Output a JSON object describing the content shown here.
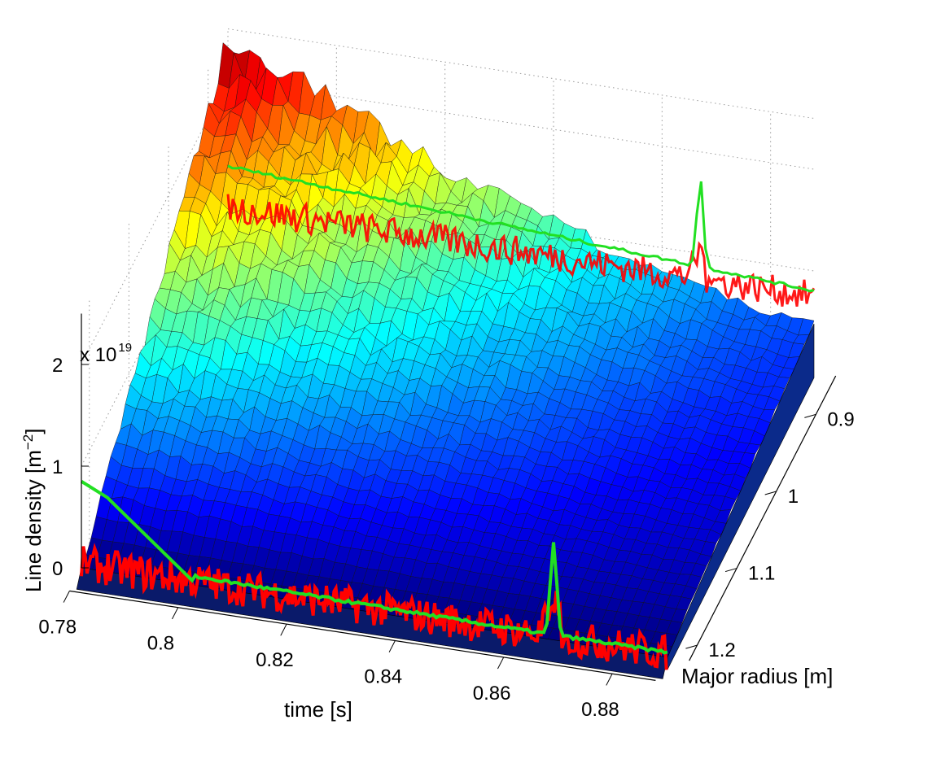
{
  "chart_data": {
    "type": "surface3d",
    "title": "",
    "xlabel": "time [s]",
    "ylabel": "Major radius [m]",
    "zlabel_main": "Line density [m",
    "zlabel_sup": "−2",
    "zlabel_end": "]",
    "zscale_text": "x 10",
    "zscale_exp": "19",
    "x_ticks": [
      "0.78",
      "0.8",
      "0.82",
      "0.84",
      "0.86",
      "0.88"
    ],
    "x_tick_values": [
      0.78,
      0.8,
      0.82,
      0.84,
      0.86,
      0.88
    ],
    "y_ticks": [
      "0.9",
      "1",
      "1.1",
      "1.2"
    ],
    "y_tick_values": [
      0.9,
      1.0,
      1.1,
      1.2
    ],
    "z_ticks": [
      "0",
      "1",
      "2"
    ],
    "z_tick_values": [
      0,
      1,
      2
    ],
    "xlim": [
      0.777,
      0.893
    ],
    "ylim": [
      0.85,
      1.22
    ],
    "zlim": [
      0,
      2.5
    ],
    "grid": true,
    "colormap": "jet",
    "surface": {
      "time_start": 0.78,
      "time_end": 0.888,
      "peak_value": 2.35,
      "edge_value_at_1_2m": 0.03,
      "value_at_0_88s_0_9m": 0.9
    },
    "overlays": [
      {
        "name": "",
        "color": "#ff0000",
        "description_value": 0.05
      },
      {
        "name": "",
        "color": "#22e022",
        "start_value": 0.85,
        "dip_value": 0.05,
        "spike_time": 0.867,
        "spike_value": 0.9
      }
    ]
  }
}
